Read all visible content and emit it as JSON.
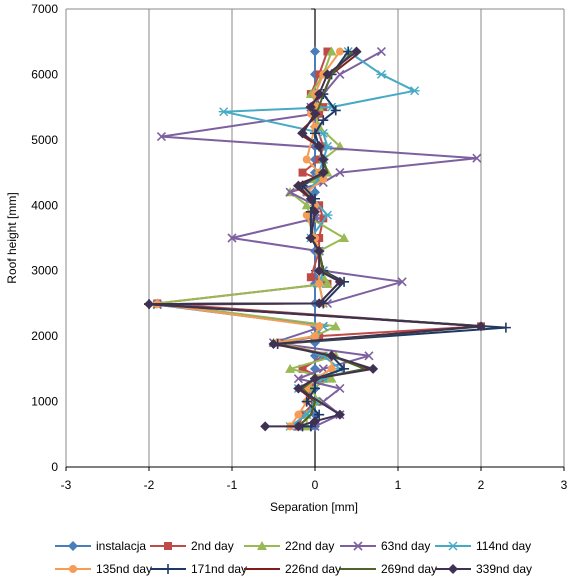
{
  "chart_data": {
    "type": "line",
    "xlabel": "Separation [mm]",
    "ylabel": "Roof height [mm]",
    "xlim": [
      -3,
      3
    ],
    "ylim": [
      0,
      7000
    ],
    "x_ticks": [
      "-3",
      "-2",
      "-1",
      "0",
      "1",
      "2",
      "3"
    ],
    "y_ticks": [
      "0",
      "1000",
      "2000",
      "3000",
      "4000",
      "5000",
      "6000",
      "7000"
    ],
    "grid": "vertical-major",
    "legend_position": "bottom",
    "series": [
      {
        "name": "instalacja",
        "color": "#4a7ebb",
        "marker": "diamond",
        "x": [
          0,
          0,
          0,
          0,
          0,
          0,
          0,
          0,
          0,
          0,
          0,
          0,
          0,
          0,
          0,
          0,
          0,
          0,
          0,
          0,
          0,
          0,
          0,
          0,
          0,
          0,
          0,
          0
        ],
        "y": [
          6350,
          6000,
          5700,
          5500,
          5400,
          5200,
          4900,
          4700,
          4500,
          4400,
          4200,
          4000,
          3800,
          3500,
          3300,
          2900,
          2800,
          2500,
          2150,
          2000,
          1900,
          1700,
          1500,
          1350,
          1200,
          1000,
          800,
          620
        ]
      },
      {
        "name": "2nd day",
        "color": "#be4b48",
        "marker": "square",
        "x": [
          0.15,
          0.05,
          -0.05,
          0.1,
          0.05,
          0.02,
          0.1,
          0.05,
          -0.15,
          0.05,
          -0.1,
          0.05,
          0.1,
          0.05,
          0.05,
          -0.05,
          0.15,
          -1.9,
          2.0,
          0.05,
          -0.4,
          0.1,
          -0.15,
          0.1,
          -0.1,
          0,
          -0.15,
          -0.2
        ],
        "y": [
          6350,
          6000,
          5700,
          5500,
          5400,
          5200,
          4900,
          4700,
          4500,
          4400,
          4200,
          4000,
          3800,
          3500,
          3300,
          2900,
          2800,
          2500,
          2150,
          2000,
          1900,
          1700,
          1500,
          1350,
          1200,
          1000,
          800,
          620
        ]
      },
      {
        "name": "22nd day",
        "color": "#98b954",
        "marker": "triangle",
        "x": [
          0.2,
          0.1,
          -0.05,
          0.05,
          0,
          0.05,
          0.3,
          0.1,
          0.15,
          0,
          -0.3,
          -0.1,
          -0.05,
          0.35,
          0.05,
          0.1,
          0.15,
          -1.9,
          0.25,
          0,
          -0.5,
          0.25,
          -0.3,
          0.2,
          -0.05,
          0.05,
          -0.1,
          -0.1
        ],
        "y": [
          6350,
          6000,
          5700,
          5500,
          5400,
          5200,
          4900,
          4700,
          4500,
          4400,
          4200,
          4000,
          3800,
          3500,
          3300,
          2900,
          2800,
          2500,
          2150,
          2000,
          1900,
          1700,
          1500,
          1350,
          1200,
          1000,
          800,
          620
        ]
      },
      {
        "name": "63nd day",
        "color": "#7d60a0",
        "marker": "x",
        "x": [
          0.8,
          0.3,
          0.1,
          -0.05,
          0,
          -1.85,
          1.95,
          0.3,
          0.1,
          -0.3,
          0,
          0,
          -1.0,
          0.05,
          0.1,
          1.05,
          0.15,
          -1.9,
          0.1,
          -0.5,
          0.65,
          0.1,
          -0.2,
          0.3,
          0.1,
          0.3,
          0,
          -0.2
        ],
        "y": [
          6350,
          6000,
          5700,
          5500,
          5400,
          5050,
          4720,
          4500,
          4350,
          4200,
          4000,
          3800,
          3500,
          3300,
          3000,
          2830,
          2500,
          2480,
          2150,
          1900,
          1700,
          1500,
          1350,
          1200,
          1000,
          800,
          620,
          620
        ]
      },
      {
        "name": "114nd day",
        "color": "#46aac5",
        "marker": "asterisk",
        "x": [
          0.4,
          0.8,
          1.2,
          0.2,
          -1.1,
          0.1,
          0.15,
          0.1,
          0.05,
          0.05,
          -0.1,
          0.15,
          -0.05,
          0.05,
          0.1,
          0.05,
          0.1,
          -1.95,
          0.1,
          0,
          -0.4,
          0.1,
          0.3,
          0.1,
          -0.2,
          0,
          -0.1,
          -0.3
        ],
        "y": [
          6350,
          6000,
          5750,
          5500,
          5430,
          5100,
          4900,
          4700,
          4500,
          4400,
          4200,
          3850,
          3500,
          3300,
          3000,
          2800,
          2500,
          2490,
          2150,
          2000,
          1900,
          1700,
          1500,
          1350,
          1200,
          1000,
          800,
          620
        ]
      },
      {
        "name": "135nd day",
        "color": "#f59d56",
        "marker": "circle",
        "x": [
          0.3,
          0.1,
          0,
          0,
          -0.05,
          0,
          -0.1,
          0.05,
          0.1,
          -0.1,
          0,
          -0.1,
          0,
          0.05,
          0.05,
          0.05,
          0.1,
          -1.9,
          0.05,
          0,
          -0.45,
          0.2,
          0.2,
          0,
          -0.1,
          -0.1,
          -0.2,
          -0.3
        ],
        "y": [
          6350,
          6000,
          5700,
          5500,
          5400,
          5200,
          4700,
          4500,
          4400,
          4200,
          4000,
          3850,
          3500,
          3300,
          3000,
          2800,
          2500,
          2490,
          2150,
          2000,
          1900,
          1700,
          1500,
          1350,
          1200,
          1000,
          800,
          620
        ]
      },
      {
        "name": "171nd day",
        "color": "#1f3864",
        "marker": "plus",
        "x": [
          0.4,
          0.2,
          0.1,
          0.25,
          0.1,
          0,
          0.05,
          0.1,
          0.1,
          -0.15,
          0,
          -0.05,
          -0.05,
          0.05,
          0.1,
          0.35,
          0.1,
          -2.0,
          2.3,
          -0.45,
          0.2,
          0.35,
          0,
          0,
          -0.1,
          0.05,
          -0.05,
          -0.15
        ],
        "y": [
          6350,
          6000,
          5700,
          5450,
          5300,
          5100,
          4900,
          4700,
          4500,
          4300,
          4100,
          3900,
          3500,
          3300,
          3000,
          2830,
          2500,
          2490,
          2130,
          1880,
          1700,
          1500,
          1350,
          1200,
          1000,
          800,
          620,
          620
        ]
      },
      {
        "name": "226nd day",
        "color": "#7f1d1d",
        "marker": "none",
        "x": [
          0.55,
          0.2,
          0.1,
          -0.1,
          0.05,
          -0.2,
          0.05,
          0.1,
          0.15,
          -0.25,
          -0.05,
          0,
          -0.05,
          0.05,
          0.1,
          0.3,
          0.05,
          -2.05,
          2.0,
          -0.45,
          0.2,
          0.65,
          0,
          -0.2,
          0,
          -0.05,
          -0.2,
          -0.3
        ],
        "y": [
          6350,
          6000,
          5700,
          5500,
          5400,
          5100,
          4900,
          4700,
          4500,
          4300,
          4100,
          3900,
          3500,
          3300,
          3000,
          2830,
          2500,
          2490,
          2150,
          1880,
          1700,
          1500,
          1350,
          1200,
          1000,
          800,
          620,
          620
        ]
      },
      {
        "name": "269nd day",
        "color": "#4f6228",
        "marker": "none",
        "x": [
          0.45,
          0.2,
          0.1,
          0.05,
          0,
          -0.15,
          0.05,
          0.1,
          0.15,
          -0.2,
          -0.05,
          0,
          -0.05,
          0.05,
          0.1,
          0.3,
          0.05,
          -2.0,
          2.05,
          -0.45,
          0.2,
          0.6,
          0,
          -0.15,
          0,
          -0.05,
          -0.2,
          -0.25
        ],
        "y": [
          6350,
          6000,
          5700,
          5500,
          5400,
          5100,
          4900,
          4700,
          4500,
          4300,
          4100,
          3900,
          3500,
          3300,
          3000,
          2830,
          2500,
          2490,
          2150,
          1880,
          1700,
          1500,
          1350,
          1200,
          1000,
          800,
          620,
          620
        ]
      },
      {
        "name": "339nd day",
        "color": "#3f3151",
        "marker": "diamond",
        "x": [
          0.5,
          0.15,
          0.05,
          -0.05,
          0,
          -0.15,
          0.05,
          0.1,
          0.1,
          -0.2,
          -0.05,
          0,
          -0.05,
          0.05,
          0.05,
          0.3,
          0.05,
          -2.0,
          2.0,
          -0.5,
          0.2,
          0.7,
          0,
          -0.2,
          0.3,
          0,
          -0.2,
          -0.6
        ],
        "y": [
          6350,
          6000,
          5700,
          5500,
          5400,
          5100,
          4900,
          4700,
          4500,
          4300,
          4100,
          3900,
          3500,
          3300,
          3000,
          2830,
          2500,
          2490,
          2150,
          1880,
          1700,
          1500,
          1350,
          1200,
          800,
          700,
          620,
          620
        ]
      }
    ]
  }
}
